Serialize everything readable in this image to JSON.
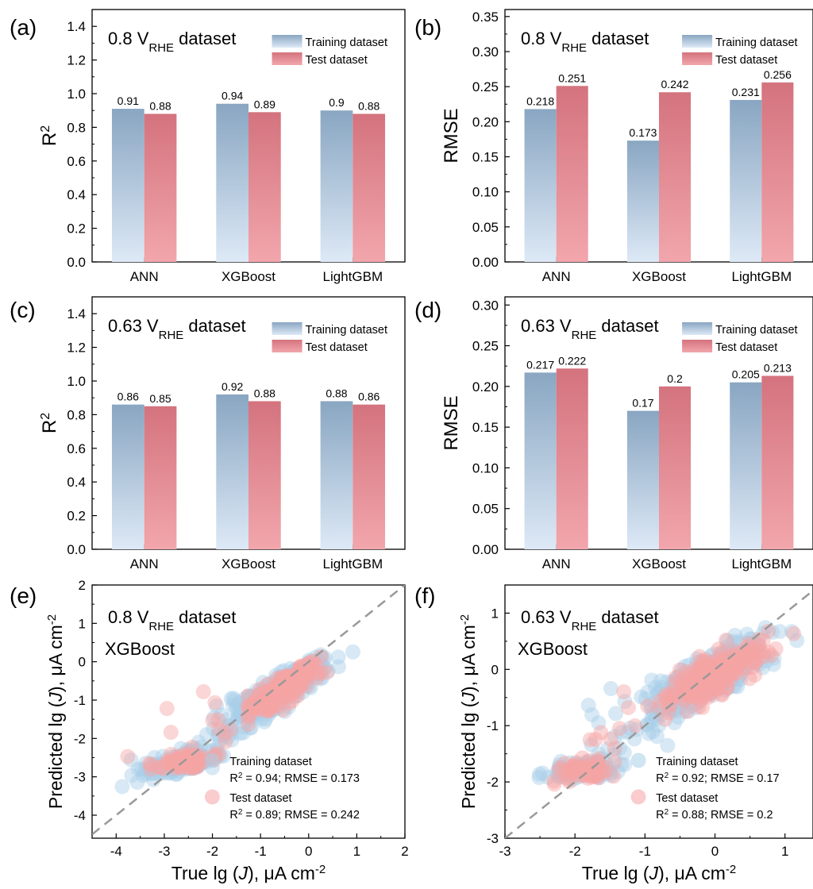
{
  "figure": {
    "panels": [
      {
        "letter": "(a)",
        "dataset": {
          "main": "0.8 V",
          "sub": "RHE",
          "tail": " dataset"
        },
        "model": "",
        "chart_data": {
          "type": "bar",
          "categories": [
            "ANN",
            "XGBoost",
            "LightGBM"
          ],
          "series": [
            {
              "name": "Training dataset",
              "values": [
                0.91,
                0.94,
                0.9
              ],
              "labels": [
                "0.91",
                "0.94",
                "0.9"
              ]
            },
            {
              "name": "Test dataset",
              "values": [
                0.88,
                0.89,
                0.88
              ],
              "labels": [
                "0.88",
                "0.89",
                "0.88"
              ]
            }
          ],
          "ylabel": {
            "main": "R",
            "sup": "2"
          },
          "ylim": [
            0,
            1.5
          ],
          "yticks": [
            "0.0",
            "0.2",
            "0.4",
            "0.6",
            "0.8",
            "1.0",
            "1.2",
            "1.4"
          ],
          "legend": "top-right"
        }
      },
      {
        "letter": "(b)",
        "dataset": {
          "main": "0.8 V",
          "sub": "RHE",
          "tail": " dataset"
        },
        "model": "",
        "chart_data": {
          "type": "bar",
          "categories": [
            "ANN",
            "XGBoost",
            "LightGBM"
          ],
          "series": [
            {
              "name": "Training dataset",
              "values": [
                0.218,
                0.173,
                0.231
              ],
              "labels": [
                "0.218",
                "0.173",
                "0.231"
              ]
            },
            {
              "name": "Test dataset",
              "values": [
                0.251,
                0.242,
                0.256
              ],
              "labels": [
                "0.251",
                "0.242",
                "0.256"
              ]
            }
          ],
          "ylabel": {
            "main": "RMSE",
            "sup": ""
          },
          "ylim": [
            0,
            0.36
          ],
          "yticks": [
            "0.00",
            "0.05",
            "0.10",
            "0.15",
            "0.20",
            "0.25",
            "0.30",
            "0.35"
          ],
          "legend": "top-right"
        }
      },
      {
        "letter": "(c)",
        "dataset": {
          "main": "0.63 V",
          "sub": "RHE",
          "tail": " dataset"
        },
        "model": "",
        "chart_data": {
          "type": "bar",
          "categories": [
            "ANN",
            "XGBoost",
            "LightGBM"
          ],
          "series": [
            {
              "name": "Training dataset",
              "values": [
                0.86,
                0.92,
                0.88
              ],
              "labels": [
                "0.86",
                "0.92",
                "0.88"
              ]
            },
            {
              "name": "Test dataset",
              "values": [
                0.85,
                0.88,
                0.86
              ],
              "labels": [
                "0.85",
                "0.88",
                "0.86"
              ]
            }
          ],
          "ylabel": {
            "main": "R",
            "sup": "2"
          },
          "ylim": [
            0,
            1.5
          ],
          "yticks": [
            "0.0",
            "0.2",
            "0.4",
            "0.6",
            "0.8",
            "1.0",
            "1.2",
            "1.4"
          ],
          "legend": "top-right"
        }
      },
      {
        "letter": "(d)",
        "dataset": {
          "main": "0.63 V",
          "sub": "RHE",
          "tail": " dataset"
        },
        "model": "",
        "chart_data": {
          "type": "bar",
          "categories": [
            "ANN",
            "XGBoost",
            "LightGBM"
          ],
          "series": [
            {
              "name": "Training dataset",
              "values": [
                0.217,
                0.17,
                0.205
              ],
              "labels": [
                "0.217",
                "0.17",
                "0.205"
              ]
            },
            {
              "name": "Test dataset",
              "values": [
                0.222,
                0.2,
                0.213
              ],
              "labels": [
                "0.222",
                "0.2",
                "0.213"
              ]
            }
          ],
          "ylabel": {
            "main": "RMSE",
            "sup": ""
          },
          "ylim": [
            0,
            0.31
          ],
          "yticks": [
            "0.00",
            "0.05",
            "0.10",
            "0.15",
            "0.20",
            "0.25",
            "0.30"
          ],
          "legend": "top-right"
        }
      },
      {
        "letter": "(e)",
        "dataset": {
          "main": "0.8 V",
          "sub": "RHE",
          "tail": " dataset"
        },
        "model": "XGBoost",
        "chart_data": {
          "type": "scatter",
          "xlim": [
            -4.5,
            2
          ],
          "ylim": [
            -4.6,
            2
          ],
          "xticks": [
            "-4",
            "-3",
            "-2",
            "-1",
            "0",
            "1",
            "2"
          ],
          "yticks": [
            "-4",
            "-3",
            "-2",
            "-1",
            "0",
            "1",
            "2"
          ],
          "xlabel": {
            "pre": "True lg (",
            "it": "J",
            "post": "), μA cm",
            "sup": "-2"
          },
          "ylabel": {
            "pre": "Predicted lg (",
            "it": "J",
            "post": "), μA cm",
            "sup": "-2"
          },
          "diagonal": true,
          "legend": "bottom-right",
          "series": [
            {
              "name": "Training dataset",
              "stat": {
                "r2": "R",
                "sup": "2",
                "rest": " = 0.94; RMSE = 0.173"
              },
              "clusters": [
                {
                  "cx": -0.6,
                  "cy": -0.75,
                  "sx": 0.45,
                  "sy": 0.22,
                  "slope": 0.72,
                  "n": 260
                },
                {
                  "cx": -2.6,
                  "cy": -2.6,
                  "sx": 0.35,
                  "sy": 0.14,
                  "slope": 0.15,
                  "n": 120
                },
                {
                  "cx": -1.8,
                  "cy": -1.8,
                  "sx": 0.3,
                  "sy": 0.35,
                  "slope": 0.6,
                  "n": 25
                },
                {
                  "cx": -3.2,
                  "cy": -2.9,
                  "sx": 0.25,
                  "sy": 0.12,
                  "slope": 0.3,
                  "n": 15
                }
              ]
            },
            {
              "name": "Test dataset",
              "stat": {
                "r2": "R",
                "sup": "2",
                "rest": " = 0.89; RMSE = 0.242"
              },
              "clusters": [
                {
                  "cx": -0.55,
                  "cy": -0.75,
                  "sx": 0.35,
                  "sy": 0.18,
                  "slope": 0.7,
                  "n": 200
                },
                {
                  "cx": -2.55,
                  "cy": -2.6,
                  "sx": 0.28,
                  "sy": 0.1,
                  "slope": 0.1,
                  "n": 80
                },
                {
                  "cx": -2.0,
                  "cy": -1.6,
                  "sx": 0.6,
                  "sy": 0.45,
                  "slope": 0.2,
                  "n": 12
                },
                {
                  "cx": -3.8,
                  "cy": -2.45,
                  "sx": 0.02,
                  "sy": 0.02,
                  "slope": 0,
                  "n": 1
                }
              ]
            }
          ]
        }
      },
      {
        "letter": "(f)",
        "dataset": {
          "main": "0.63 V",
          "sub": "RHE",
          "tail": " dataset"
        },
        "model": "XGBoost",
        "chart_data": {
          "type": "scatter",
          "xlim": [
            -3,
            1.4
          ],
          "ylim": [
            -3,
            1.5
          ],
          "xticks": [
            "-3",
            "-2",
            "-1",
            "0",
            "1"
          ],
          "yticks": [
            "-3",
            "-2",
            "-1",
            "0",
            "1"
          ],
          "xlabel": {
            "pre": "True lg (",
            "it": "J",
            "post": "), μA cm",
            "sup": "-2"
          },
          "ylabel": {
            "pre": "Predicted lg (",
            "it": "J",
            "post": "), μA cm",
            "sup": "-2"
          },
          "diagonal": true,
          "legend": "bottom-right",
          "series": [
            {
              "name": "Training dataset",
              "stat": {
                "r2": "R",
                "sup": "2",
                "rest": " = 0.92; RMSE = 0.17"
              },
              "clusters": [
                {
                  "cx": -0.1,
                  "cy": -0.15,
                  "sx": 0.4,
                  "sy": 0.22,
                  "slope": 0.62,
                  "n": 320
                },
                {
                  "cx": -1.9,
                  "cy": -1.8,
                  "sx": 0.25,
                  "sy": 0.08,
                  "slope": 0.05,
                  "n": 90
                },
                {
                  "cx": -1.2,
                  "cy": -1.1,
                  "sx": 0.4,
                  "sy": 0.35,
                  "slope": 0.4,
                  "n": 30
                }
              ]
            },
            {
              "name": "Test dataset",
              "stat": {
                "r2": "R",
                "sup": "2",
                "rest": " = 0.88; RMSE = 0.2"
              },
              "clusters": [
                {
                  "cx": -0.05,
                  "cy": -0.15,
                  "sx": 0.35,
                  "sy": 0.18,
                  "slope": 0.65,
                  "n": 240
                },
                {
                  "cx": -1.9,
                  "cy": -1.8,
                  "sx": 0.2,
                  "sy": 0.07,
                  "slope": 0.05,
                  "n": 60
                },
                {
                  "cx": -1.4,
                  "cy": -1.2,
                  "sx": 0.3,
                  "sy": 0.3,
                  "slope": 0.3,
                  "n": 10
                }
              ]
            }
          ]
        }
      }
    ]
  },
  "colors": {
    "train_top": "#89a6c2",
    "train_bottom": "#dde9f6",
    "test_top": "#d4737e",
    "test_bottom": "#f2a6ac",
    "train_point": "#a8cfe8",
    "test_point": "#f6a3a5",
    "diagonal": "#999999"
  }
}
